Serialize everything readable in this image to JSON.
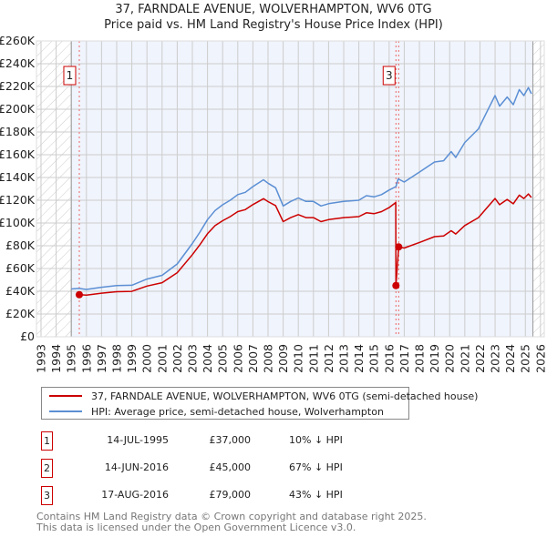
{
  "title": "37, FARNDALE AVENUE, WOLVERHAMPTON, WV6 0TG",
  "subtitle": "Price paid vs. HM Land Registry's House Price Index (HPI)",
  "colors": {
    "property": "#cc0000",
    "hpi": "#5b8fd4",
    "background": "#f0f4fc",
    "grid": "#cccccc"
  },
  "chart_data": {
    "type": "line",
    "title": "37, FARNDALE AVENUE, WOLVERHAMPTON, WV6 0TG",
    "xlabel": "",
    "ylabel": "",
    "xlim": [
      1992.7,
      2026.25
    ],
    "ylim": [
      0,
      260000
    ],
    "xticks": [
      1993,
      1994,
      1995,
      1996,
      1997,
      1998,
      1999,
      2000,
      2001,
      2002,
      2003,
      2004,
      2005,
      2006,
      2007,
      2008,
      2009,
      2010,
      2011,
      2012,
      2013,
      2014,
      2015,
      2016,
      2017,
      2018,
      2019,
      2020,
      2021,
      2022,
      2023,
      2024,
      2025,
      2026
    ],
    "yticks": [
      0,
      20000,
      40000,
      60000,
      80000,
      100000,
      120000,
      140000,
      160000,
      180000,
      200000,
      220000,
      240000,
      260000
    ],
    "ytick_labels": [
      "£0",
      "£20K",
      "£40K",
      "£60K",
      "£80K",
      "£100K",
      "£120K",
      "£140K",
      "£160K",
      "£180K",
      "£200K",
      "£220K",
      "£240K",
      "£260K"
    ],
    "grid": true,
    "data_range": [
      1995.0,
      2025.5
    ],
    "series": [
      {
        "name": "37, FARNDALE AVENUE, WOLVERHAMPTON, WV6 0TG (semi-detached house)",
        "x": [
          1995.53,
          1996,
          1997,
          1998,
          1999,
          2000,
          2001,
          2002,
          2003,
          2003.5,
          2004,
          2004.5,
          2005,
          2005.5,
          2006,
          2006.5,
          2007,
          2007.7,
          2008,
          2008.5,
          2009,
          2009.5,
          2010,
          2010.5,
          2011,
          2011.5,
          2012,
          2013,
          2014,
          2014.5,
          2015,
          2015.5,
          2016,
          2016.44,
          2016.45,
          2016.63,
          2017,
          2018.1,
          2019,
          2019.6,
          2020.1,
          2020.4,
          2021,
          2021.9,
          2022.5,
          2023,
          2023.3,
          2023.8,
          2024.2,
          2024.6,
          2024.9,
          2025.2,
          2025.4
        ],
        "y": [
          37000,
          36600,
          38300,
          39600,
          39900,
          44600,
          47500,
          56300,
          72200,
          81000,
          90600,
          97700,
          102000,
          105600,
          110000,
          111800,
          116200,
          121400,
          118800,
          115300,
          101200,
          104700,
          107400,
          104700,
          104700,
          101200,
          103000,
          104700,
          105600,
          109000,
          108200,
          110000,
          113500,
          118000,
          45000,
          79000,
          78000,
          83400,
          88000,
          88600,
          93200,
          90300,
          97800,
          104700,
          113900,
          121500,
          116100,
          120700,
          116900,
          124500,
          121500,
          125500,
          122400
        ]
      },
      {
        "name": "HPI: Average price, semi-detached house, Wolverhampton",
        "x": [
          1995.0,
          1995.5,
          1996,
          1997,
          1998,
          1999,
          2000,
          2001,
          2002,
          2003,
          2003.5,
          2004,
          2004.5,
          2005,
          2005.5,
          2006,
          2006.5,
          2007,
          2007.7,
          2008,
          2008.5,
          2009,
          2009.5,
          2010,
          2010.5,
          2011,
          2011.5,
          2012,
          2013,
          2014,
          2014.5,
          2015,
          2015.5,
          2016,
          2016.45,
          2016.6,
          2017,
          2018.1,
          2019,
          2019.6,
          2020.1,
          2020.4,
          2021,
          2021.9,
          2022.5,
          2023,
          2023.3,
          2023.8,
          2024.2,
          2024.6,
          2024.9,
          2025.2,
          2025.4
        ],
        "y": [
          42000,
          42500,
          41600,
          43500,
          45000,
          45300,
          50700,
          54000,
          64000,
          82000,
          92000,
          103000,
          111000,
          116000,
          120000,
          125000,
          127000,
          132000,
          138000,
          135000,
          131000,
          115000,
          119000,
          122000,
          119000,
          119000,
          115000,
          117000,
          119000,
          120000,
          124000,
          123000,
          125000,
          129000,
          132000,
          138700,
          136000,
          145600,
          153600,
          154700,
          162700,
          157600,
          170700,
          182700,
          198700,
          212000,
          202700,
          210700,
          204000,
          217300,
          212000,
          219000,
          213600
        ]
      }
    ],
    "sales": [
      {
        "id": "1",
        "date": "14-JUL-1995",
        "x": 1995.53,
        "price": 37000,
        "price_label": "£37,000",
        "hpi_diff": "10% ↓ HPI",
        "show_box": true
      },
      {
        "id": "2",
        "date": "14-JUN-2016",
        "x": 2016.45,
        "price": 45000,
        "price_label": "£45,000",
        "hpi_diff": "67% ↓ HPI",
        "show_box": false
      },
      {
        "id": "3",
        "date": "17-AUG-2016",
        "x": 2016.63,
        "price": 79000,
        "price_label": "£79,000",
        "hpi_diff": "43% ↓ HPI",
        "show_box": true
      }
    ],
    "legend_placement": "below"
  },
  "legend": {
    "property": "37, FARNDALE AVENUE, WOLVERHAMPTON, WV6 0TG (semi-detached house)",
    "hpi": "HPI: Average price, semi-detached house, Wolverhampton"
  },
  "footer": {
    "line1": "Contains HM Land Registry data © Crown copyright and database right 2025.",
    "line2": "This data is licensed under the Open Government Licence v3.0."
  }
}
